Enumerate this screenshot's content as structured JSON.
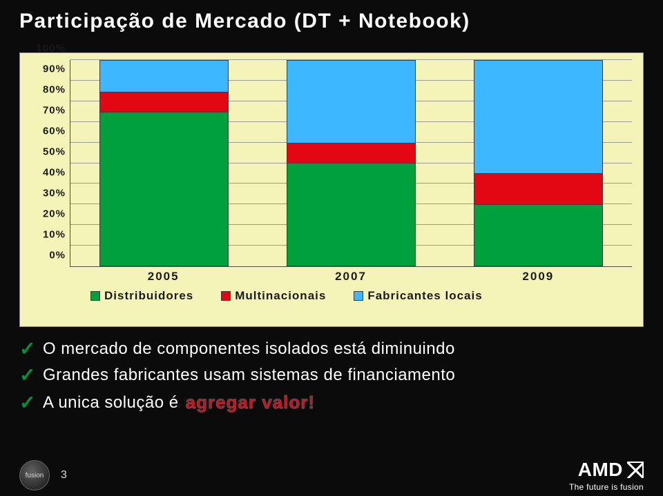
{
  "background_color": "#0b0b0b",
  "title": "Participação de Mercado (DT + Notebook)",
  "title_color": "#ffffff",
  "chart": {
    "type": "stacked-bar",
    "plot_background": "#f4f4b8",
    "grid_color": "#9a9a9a",
    "axis_color": "#4b4b4b",
    "y_ticks": [
      "0%",
      "10%",
      "20%",
      "30%",
      "40%",
      "50%",
      "60%",
      "70%",
      "80%",
      "90%",
      "100%"
    ],
    "y_min": 0,
    "y_max": 100,
    "categories": [
      "2005",
      "2007",
      "2009"
    ],
    "series": [
      {
        "name": "Distribuidores",
        "color": "#00a03c"
      },
      {
        "name": "Multinacionais",
        "color": "#e30613"
      },
      {
        "name": "Fabricantes locais",
        "color": "#3db7ff"
      }
    ],
    "bars": [
      {
        "category": "2005",
        "values": [
          75,
          10,
          15
        ]
      },
      {
        "category": "2007",
        "values": [
          50,
          10,
          40
        ]
      },
      {
        "category": "2009",
        "values": [
          30,
          15,
          55
        ]
      }
    ],
    "bar_width_pct": 23,
    "label_fontsize": 17,
    "label_color": "#1a1a1a"
  },
  "bullets": {
    "check_color": "#00933b",
    "text_color": "#ffffff",
    "highlight_color": "#e30613",
    "items": [
      {
        "text": "O mercado de componentes isolados está diminuindo"
      },
      {
        "text": "Grandes fabricantes usam sistemas de financiamento"
      },
      {
        "text": "A unica solução é ",
        "highlight": "agregar valor!"
      }
    ]
  },
  "footer": {
    "page_number": "3",
    "fusion_label": "fusion",
    "amd_text": "AMD",
    "tagline": "The future is fusion"
  }
}
